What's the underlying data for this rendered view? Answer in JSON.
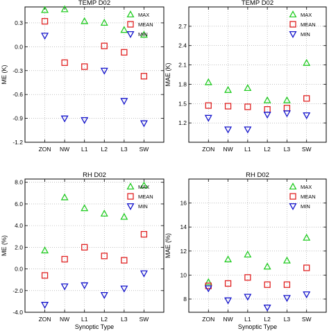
{
  "figure": {
    "categories": [
      "ZON",
      "NW",
      "L1",
      "L2",
      "L3",
      "SW"
    ],
    "legend_labels": [
      "MAX",
      "MEAN",
      "MIN"
    ],
    "colors": {
      "MAX": "#22cc22",
      "MEAN": "#e02020",
      "MIN": "#1414cc"
    },
    "markers": {
      "MAX": "triangle-up",
      "MEAN": "square",
      "MIN": "triangle-down"
    }
  },
  "chart_data": [
    {
      "type": "scatter",
      "title": "TEMP D02",
      "xlabel": "",
      "ylabel": "ME (K)",
      "ylim": [
        -1.2,
        0.5
      ],
      "yticks": [
        -1.2,
        -0.9,
        -0.6,
        -0.3,
        0.0,
        0.3
      ],
      "ytick_labels": [
        "-1.2",
        "-0.9",
        "-0.6",
        "-0.3",
        "0.0",
        "0.3"
      ],
      "legend": "top-right",
      "categories": [
        "ZON",
        "NW",
        "L1",
        "L2",
        "L3",
        "SW"
      ],
      "series": [
        {
          "name": "MAX",
          "values": [
            0.46,
            0.47,
            0.32,
            0.3,
            0.21,
            0.15
          ]
        },
        {
          "name": "MEAN",
          "values": [
            0.32,
            -0.2,
            -0.25,
            0.01,
            -0.07,
            -0.37
          ]
        },
        {
          "name": "MIN",
          "values": [
            0.14,
            -0.9,
            -0.92,
            -0.3,
            -0.68,
            -0.96
          ]
        }
      ]
    },
    {
      "type": "scatter",
      "title": "TEMP D02",
      "xlabel": "",
      "ylabel": "MAE (K)",
      "ylim": [
        0.9,
        3.0
      ],
      "yticks": [
        1.2,
        1.5,
        1.8,
        2.1,
        2.4,
        2.7
      ],
      "ytick_labels": [
        "1.2",
        "1.5",
        "1.8",
        "2.1",
        "2.4",
        "2.7"
      ],
      "legend": "top-right",
      "categories": [
        "ZON",
        "NW",
        "L1",
        "L2",
        "L3",
        "SW"
      ],
      "series": [
        {
          "name": "MAX",
          "values": [
            1.83,
            1.71,
            1.74,
            1.55,
            1.55,
            2.13
          ]
        },
        {
          "name": "MEAN",
          "values": [
            1.47,
            1.46,
            1.45,
            1.41,
            1.43,
            1.58
          ]
        },
        {
          "name": "MIN",
          "values": [
            1.28,
            1.1,
            1.1,
            1.33,
            1.35,
            1.32
          ]
        }
      ]
    },
    {
      "type": "scatter",
      "title": "RH D02",
      "xlabel": "Synoptic Type",
      "ylabel": "ME (%)",
      "ylim": [
        -4.0,
        8.3
      ],
      "yticks": [
        -4.0,
        -2.0,
        0.0,
        2.0,
        4.0,
        6.0,
        8.0
      ],
      "ytick_labels": [
        "-4.0",
        "-2.0",
        "0.0",
        "2.0",
        "4.0",
        "6.0",
        "8.0"
      ],
      "legend": "top-right",
      "categories": [
        "ZON",
        "NW",
        "L1",
        "L2",
        "L3",
        "SW"
      ],
      "series": [
        {
          "name": "MAX",
          "values": [
            1.7,
            6.6,
            5.6,
            5.1,
            4.8,
            7.7
          ]
        },
        {
          "name": "MEAN",
          "values": [
            -0.6,
            0.9,
            2.0,
            1.2,
            0.8,
            3.2
          ]
        },
        {
          "name": "MIN",
          "values": [
            -3.3,
            -1.6,
            -1.5,
            -2.4,
            -1.8,
            -0.4
          ]
        }
      ]
    },
    {
      "type": "scatter",
      "title": "RH D02",
      "xlabel": "Synoptic Type",
      "ylabel": "MAE (%)",
      "ylim": [
        6.9,
        18.0
      ],
      "yticks": [
        8,
        10,
        12,
        14,
        16
      ],
      "ytick_labels": [
        "8",
        "10",
        "12",
        "14",
        "16"
      ],
      "legend": "top-right",
      "categories": [
        "ZON",
        "NW",
        "L1",
        "L2",
        "L3",
        "SW"
      ],
      "series": [
        {
          "name": "MAX",
          "values": [
            9.4,
            11.3,
            11.7,
            10.7,
            11.2,
            13.1
          ]
        },
        {
          "name": "MEAN",
          "values": [
            9.1,
            9.3,
            9.8,
            9.2,
            9.2,
            10.6
          ]
        },
        {
          "name": "MIN",
          "values": [
            8.9,
            7.9,
            8.2,
            7.3,
            8.1,
            8.4
          ]
        }
      ]
    }
  ]
}
